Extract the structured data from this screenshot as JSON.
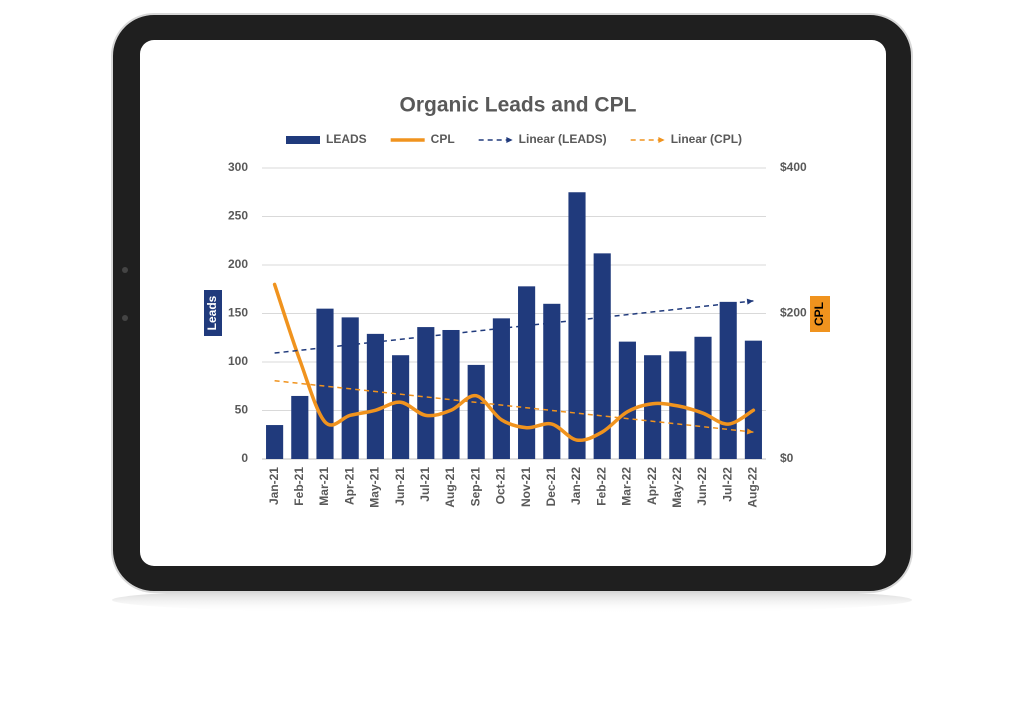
{
  "chart_data": {
    "type": "bar",
    "title": "Organic Leads and CPL",
    "categories": [
      "Jan-21",
      "Feb-21",
      "Mar-21",
      "Apr-21",
      "May-21",
      "Jun-21",
      "Jul-21",
      "Aug-21",
      "Sep-21",
      "Oct-21",
      "Nov-21",
      "Dec-21",
      "Jan-22",
      "Feb-22",
      "Mar-22",
      "Apr-22",
      "May-22",
      "Jun-22",
      "Jul-22",
      "Aug-22"
    ],
    "series": [
      {
        "name": "LEADS",
        "type": "bar",
        "color": "#203a7c",
        "values": [
          35,
          65,
          155,
          146,
          129,
          107,
          136,
          133,
          97,
          145,
          178,
          160,
          275,
          212,
          121,
          107,
          111,
          126,
          162,
          122
        ],
        "trendline": {
          "name": "Linear (LEADS)",
          "color": "#203a7c"
        }
      },
      {
        "name": "CPL",
        "type": "line",
        "axis": "y2",
        "color": "#f0931e",
        "values": [
          240,
          136,
          51,
          60,
          67,
          78,
          60,
          67,
          87,
          54,
          43,
          48,
          26,
          37,
          65,
          76,
          73,
          63,
          48,
          67
        ],
        "trendline": {
          "name": "Linear (CPL)",
          "color": "#f0931e"
        }
      }
    ],
    "ylabel": "Leads",
    "y2label": "CPL",
    "ylim": [
      0,
      300
    ],
    "yticks": [
      0,
      50,
      100,
      150,
      200,
      250,
      300
    ],
    "y2lim": [
      0,
      400
    ],
    "y2ticks": [
      {
        "value": 0,
        "label": "$0"
      },
      {
        "value": 200,
        "label": "$200"
      },
      {
        "value": 400,
        "label": "$400"
      }
    ],
    "grid": true,
    "legend": "top"
  }
}
